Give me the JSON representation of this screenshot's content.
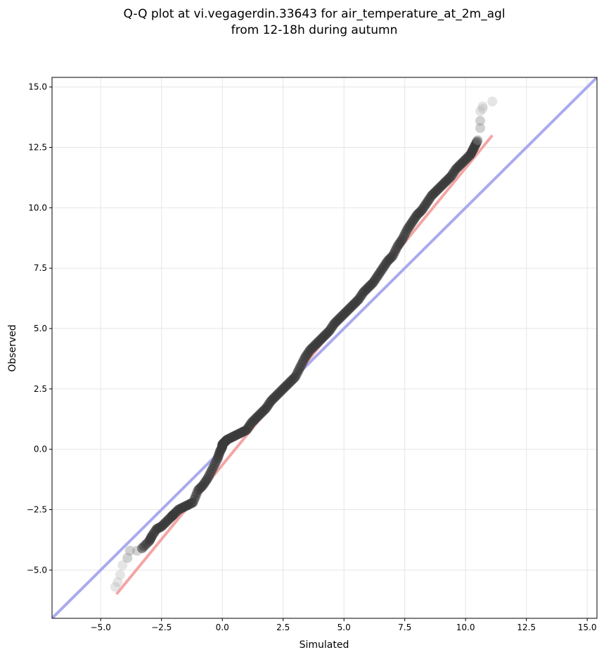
{
  "chart_data": {
    "type": "scatter",
    "title": [
      "Q-Q plot at vi.vegagerdin.33643 for air_temperature_at_2m_agl",
      "from 12-18h during autumn"
    ],
    "xlabel": "Simulated",
    "ylabel": "Observed",
    "xlim": [
      -7.0,
      15.4
    ],
    "ylim": [
      -7.0,
      15.4
    ],
    "xticks": [
      -5.0,
      -2.5,
      0.0,
      2.5,
      5.0,
      7.5,
      10.0,
      12.5,
      15.0
    ],
    "yticks": [
      -5.0,
      -2.5,
      0.0,
      2.5,
      5.0,
      7.5,
      10.0,
      12.5,
      15.0
    ],
    "xtick_labels": [
      "−5.0",
      "−2.5",
      "0.0",
      "2.5",
      "5.0",
      "7.5",
      "10.0",
      "12.5",
      "15.0"
    ],
    "ytick_labels": [
      "−5.0",
      "−2.5",
      "0.0",
      "2.5",
      "5.0",
      "7.5",
      "10.0",
      "12.5",
      "15.0"
    ],
    "grid": true,
    "reference_line": {
      "x": [
        -7.0,
        15.4
      ],
      "y": [
        -7.0,
        15.4
      ],
      "color": "#aaaaee"
    },
    "fit_line": {
      "x": [
        -4.35,
        11.1
      ],
      "y": [
        -6.0,
        13.0
      ],
      "color": "#f4a5a5"
    },
    "colors": {
      "points": "#3a3a3a",
      "points_light": "#b4b4b4",
      "points_blue": "#1a1a80",
      "points_red": "#801414"
    },
    "quantiles": {
      "x": [
        -4.4,
        -4.3,
        -4.2,
        -4.1,
        -3.9,
        -3.8,
        -3.5,
        -3.3,
        -3.0,
        -2.9,
        -2.7,
        -2.5,
        -2.3,
        -2.1,
        -2.0,
        -1.8,
        -1.6,
        -1.4,
        -1.2,
        -1.0,
        -0.8,
        -0.6,
        -0.4,
        -0.2,
        -0.1,
        0.0,
        0.0,
        0.1,
        0.2,
        0.4,
        0.6,
        0.8,
        1.0,
        1.2,
        1.4,
        1.6,
        1.8,
        2.0,
        2.2,
        2.4,
        2.6,
        2.8,
        3.0,
        3.2,
        3.4,
        3.6,
        3.8,
        4.0,
        4.2,
        4.4,
        4.6,
        4.8,
        5.0,
        5.2,
        5.4,
        5.6,
        5.8,
        6.0,
        6.2,
        6.4,
        6.6,
        6.8,
        7.0,
        7.2,
        7.4,
        7.6,
        7.8,
        8.0,
        8.2,
        8.4,
        8.6,
        8.8,
        9.0,
        9.2,
        9.4,
        9.6,
        9.8,
        10.0,
        10.2,
        10.3,
        10.4,
        10.5,
        10.6,
        10.6,
        10.6,
        10.7,
        10.7,
        11.1
      ],
      "y": [
        -5.7,
        -5.5,
        -5.2,
        -4.8,
        -4.5,
        -4.2,
        -4.2,
        -4.1,
        -3.8,
        -3.6,
        -3.3,
        -3.2,
        -3.0,
        -2.8,
        -2.7,
        -2.5,
        -2.4,
        -2.3,
        -2.2,
        -1.7,
        -1.5,
        -1.2,
        -0.8,
        -0.4,
        -0.1,
        0.1,
        0.2,
        0.3,
        0.4,
        0.5,
        0.6,
        0.7,
        0.8,
        1.1,
        1.3,
        1.5,
        1.7,
        2.0,
        2.2,
        2.4,
        2.6,
        2.8,
        3.0,
        3.4,
        3.8,
        4.1,
        4.3,
        4.5,
        4.7,
        4.9,
        5.2,
        5.4,
        5.6,
        5.8,
        6.0,
        6.2,
        6.5,
        6.7,
        6.9,
        7.2,
        7.5,
        7.8,
        8.0,
        8.4,
        8.7,
        9.1,
        9.4,
        9.7,
        9.9,
        10.2,
        10.5,
        10.7,
        10.9,
        11.1,
        11.3,
        11.6,
        11.8,
        12.0,
        12.2,
        12.4,
        12.6,
        12.8,
        13.3,
        13.6,
        14.0,
        14.1,
        14.2,
        14.4
      ]
    }
  }
}
